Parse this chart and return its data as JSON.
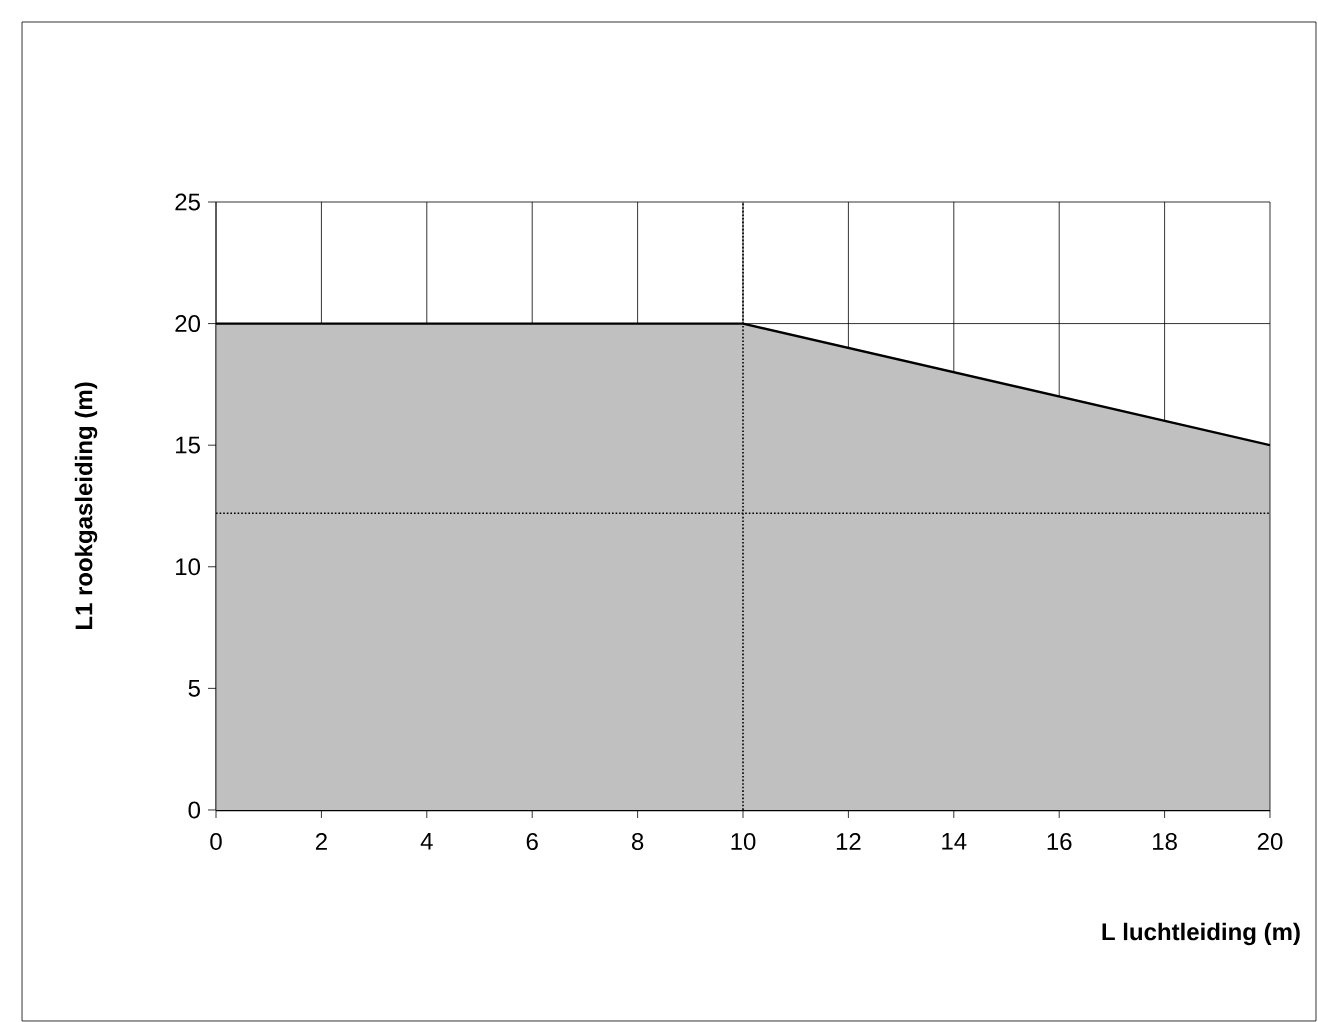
{
  "chart_data": {
    "type": "area",
    "xlabel": "L luchtleiding (m)",
    "ylabel": "L1 rookgasleiding (m)",
    "x": [
      0,
      10,
      20
    ],
    "series": [
      {
        "color": "#c0c0c0",
        "values": [
          20,
          20,
          15
        ]
      }
    ],
    "xlim": [
      0,
      20
    ],
    "ylim": [
      0,
      25
    ],
    "xticks": [
      0,
      2,
      4,
      6,
      8,
      10,
      12,
      14,
      16,
      18,
      20
    ],
    "yticks": [
      0,
      5,
      10,
      15,
      20,
      25
    ],
    "grid": true,
    "ref_lines": [
      {
        "axis": "x",
        "value": 10,
        "line_style": "dotted"
      },
      {
        "axis": "y",
        "value": 12.2,
        "line_style": "dotted"
      }
    ]
  }
}
